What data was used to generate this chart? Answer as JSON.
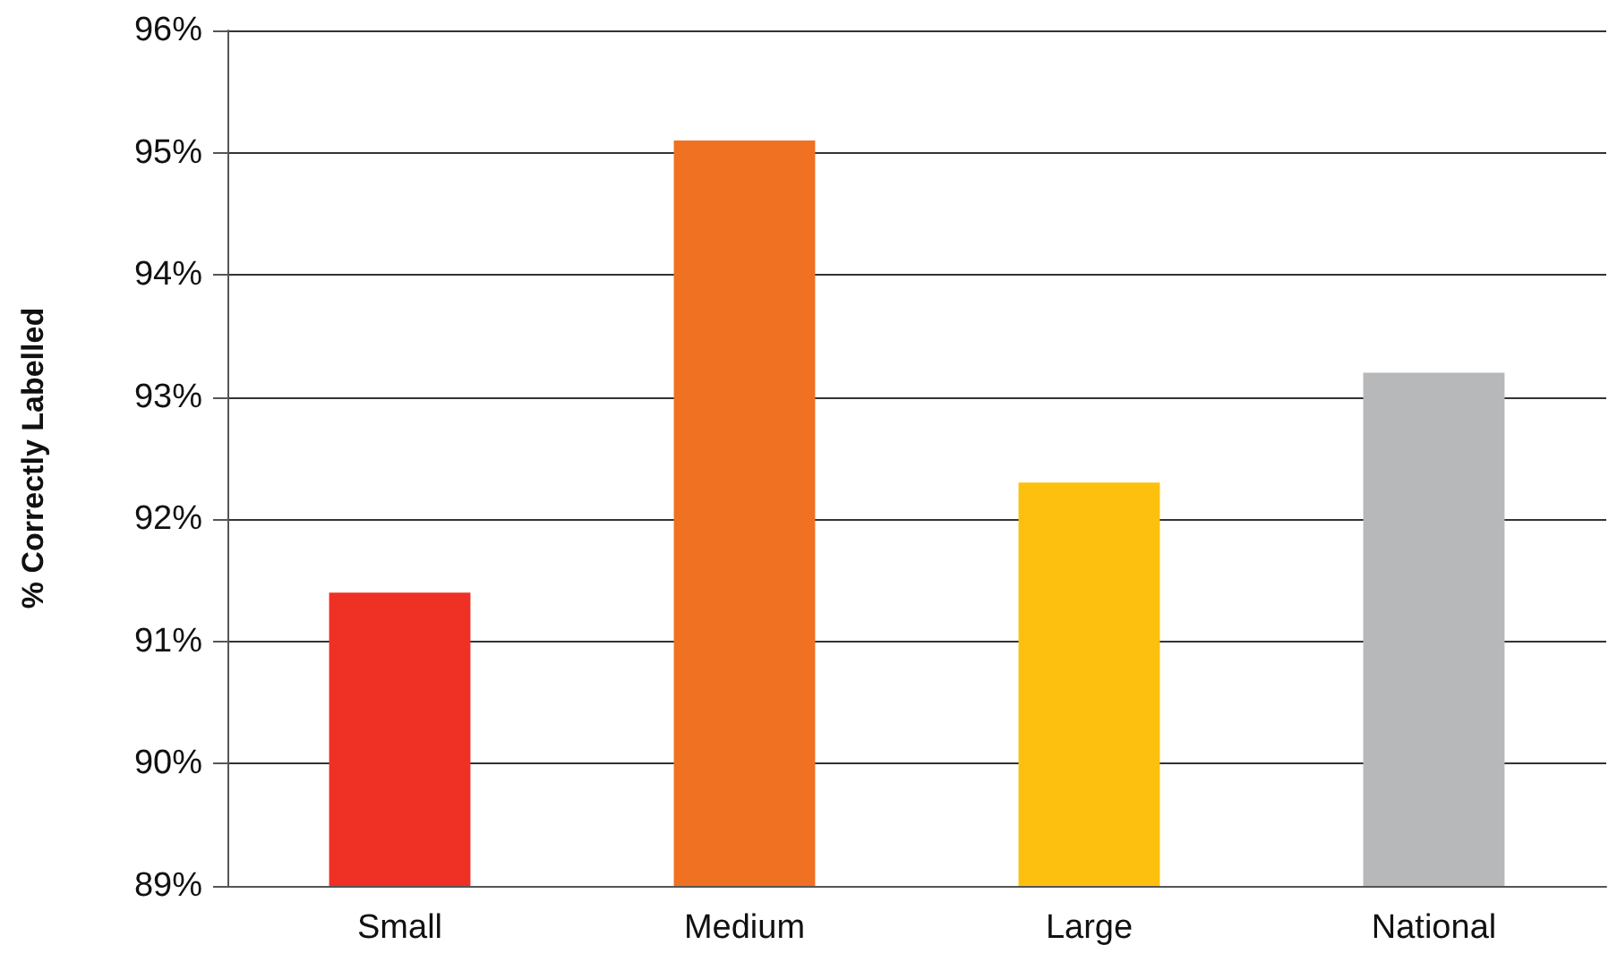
{
  "chart_data": {
    "type": "bar",
    "ylabel": "% Correctly Labelled",
    "categories": [
      "Small",
      "Medium",
      "Large",
      "National"
    ],
    "values": [
      91.4,
      95.1,
      92.3,
      93.2
    ],
    "colors": [
      "#ee3124",
      "#f07122",
      "#fdc00f",
      "#b7b8ba"
    ],
    "ylim": [
      89,
      96
    ],
    "yticks": [
      {
        "value": 89,
        "label": "89%"
      },
      {
        "value": 90,
        "label": "90%"
      },
      {
        "value": 91,
        "label": "91%"
      },
      {
        "value": 92,
        "label": "92%"
      },
      {
        "value": 93,
        "label": "93%"
      },
      {
        "value": 94,
        "label": "94%"
      },
      {
        "value": 95,
        "label": "95%"
      },
      {
        "value": 96,
        "label": "96%"
      }
    ],
    "grid": "y"
  }
}
